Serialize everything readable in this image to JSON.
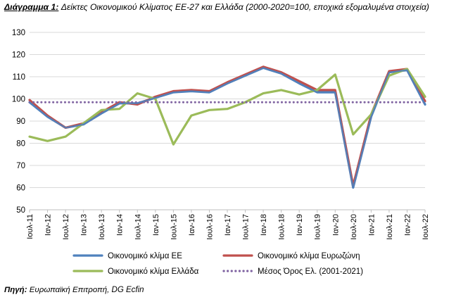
{
  "caption": {
    "label": "Διάγραμμα 1:",
    "text": "Δείκτες Οικονομικού Κλίματος ΕΕ-27 και Ελλάδα (2000-2020=100, εποχικά εξομαλυμένα στοιχεία)"
  },
  "source": {
    "label": "Πηγή:",
    "text": "Ευρωπαϊκή Επιτροπή, DG Ecfin"
  },
  "chart_data": {
    "type": "line",
    "title": "",
    "xlabel": "",
    "ylabel": "",
    "ylim": [
      50,
      130
    ],
    "yticks": [
      50,
      60,
      70,
      80,
      90,
      100,
      110,
      120,
      130
    ],
    "grid": "horizontal",
    "legend_position": "bottom",
    "x_start": "Ιουλ-11",
    "x_end": "Ιουλ-22",
    "x_tick_labels": [
      "Ιουλ-11",
      "Ιαν-12",
      "Ιουλ-12",
      "Ιαν-13",
      "Ιουλ-13",
      "Ιαν-14",
      "Ιουλ-14",
      "Ιαν-15",
      "Ιουλ-15",
      "Ιαν-16",
      "Ιουλ-16",
      "Ιαν-17",
      "Ιουλ-17",
      "Ιαν-18",
      "Ιουλ-18",
      "Ιαν-19",
      "Ιουλ-19",
      "Ιαν-20",
      "Ιουλ-20",
      "Ιαν-21",
      "Ιουλ-21",
      "Ιαν-22",
      "Ιουλ-22"
    ],
    "series": [
      {
        "name": "Οικονομικό κλίμα ΕΕ",
        "color": "#4f81bd",
        "style": "solid",
        "points": [
          [
            "Ιουλ-11",
            98.5
          ],
          [
            "Ιαν-12",
            92
          ],
          [
            "Ιουλ-12",
            87
          ],
          [
            "Ιαν-13",
            88.5
          ],
          [
            "Ιουλ-13",
            93.5
          ],
          [
            "Ιαν-14",
            98
          ],
          [
            "Ιουλ-14",
            98
          ],
          [
            "Ιαν-15",
            100.5
          ],
          [
            "Ιουλ-15",
            103
          ],
          [
            "Ιαν-16",
            103.5
          ],
          [
            "Ιουλ-16",
            103
          ],
          [
            "Ιαν-17",
            107
          ],
          [
            "Ιουλ-17",
            110.5
          ],
          [
            "Ιαν-18",
            114
          ],
          [
            "Ιουλ-18",
            111.5
          ],
          [
            "Ιαν-19",
            107
          ],
          [
            "Ιουλ-19",
            103
          ],
          [
            "Ιαν-20",
            103
          ],
          [
            "Ιουλ-20",
            60
          ],
          [
            "Ιαν-21",
            92
          ],
          [
            "Ιουλ-21",
            112
          ],
          [
            "Ιαν-22",
            113
          ],
          [
            "Ιουλ-22",
            97.5
          ]
        ]
      },
      {
        "name": "Οικονομικό κλίμα Ευρωζώνη",
        "color": "#c0504d",
        "style": "solid",
        "points": [
          [
            "Ιουλ-11",
            99.5
          ],
          [
            "Ιαν-12",
            92.5
          ],
          [
            "Ιουλ-12",
            87
          ],
          [
            "Ιαν-13",
            89
          ],
          [
            "Ιουλ-13",
            94
          ],
          [
            "Ιαν-14",
            98.5
          ],
          [
            "Ιουλ-14",
            97.5
          ],
          [
            "Ιαν-15",
            101
          ],
          [
            "Ιουλ-15",
            103.5
          ],
          [
            "Ιαν-16",
            104
          ],
          [
            "Ιουλ-16",
            103.5
          ],
          [
            "Ιαν-17",
            107.5
          ],
          [
            "Ιουλ-17",
            111
          ],
          [
            "Ιαν-18",
            114.5
          ],
          [
            "Ιουλ-18",
            112
          ],
          [
            "Ιαν-19",
            108
          ],
          [
            "Ιουλ-19",
            104
          ],
          [
            "Ιαν-20",
            104
          ],
          [
            "Ιουλ-20",
            61
          ],
          [
            "Ιαν-21",
            93
          ],
          [
            "Ιουλ-21",
            112.5
          ],
          [
            "Ιαν-22",
            113.5
          ],
          [
            "Ιουλ-22",
            99
          ]
        ]
      },
      {
        "name": "Οικονομικό κλίμα Ελλάδα",
        "color": "#9bbb59",
        "style": "solid",
        "points": [
          [
            "Ιουλ-11",
            83
          ],
          [
            "Ιαν-12",
            81
          ],
          [
            "Ιουλ-12",
            83
          ],
          [
            "Ιαν-13",
            89
          ],
          [
            "Ιουλ-13",
            95
          ],
          [
            "Ιαν-14",
            95.5
          ],
          [
            "Ιουλ-14",
            102.5
          ],
          [
            "Ιαν-15",
            100
          ],
          [
            "Ιουλ-15",
            79.5
          ],
          [
            "Ιαν-16",
            92.5
          ],
          [
            "Ιουλ-16",
            95
          ],
          [
            "Ιαν-17",
            95.5
          ],
          [
            "Ιουλ-17",
            98.5
          ],
          [
            "Ιαν-18",
            102.5
          ],
          [
            "Ιουλ-18",
            104
          ],
          [
            "Ιαν-19",
            102
          ],
          [
            "Ιουλ-19",
            104
          ],
          [
            "Ιαν-20",
            111
          ],
          [
            "Ιουλ-20",
            84
          ],
          [
            "Ιαν-21",
            93
          ],
          [
            "Ιουλ-21",
            110.5
          ],
          [
            "Ιαν-22",
            113.5
          ],
          [
            "Ιουλ-22",
            101
          ]
        ]
      },
      {
        "name": "Μέσος Όρος Ελ. (2001-2021)",
        "color": "#8064a2",
        "style": "dotted",
        "points": [
          [
            "Ιουλ-11",
            98.5
          ],
          [
            "Ιουλ-22",
            98.5
          ]
        ]
      }
    ]
  }
}
